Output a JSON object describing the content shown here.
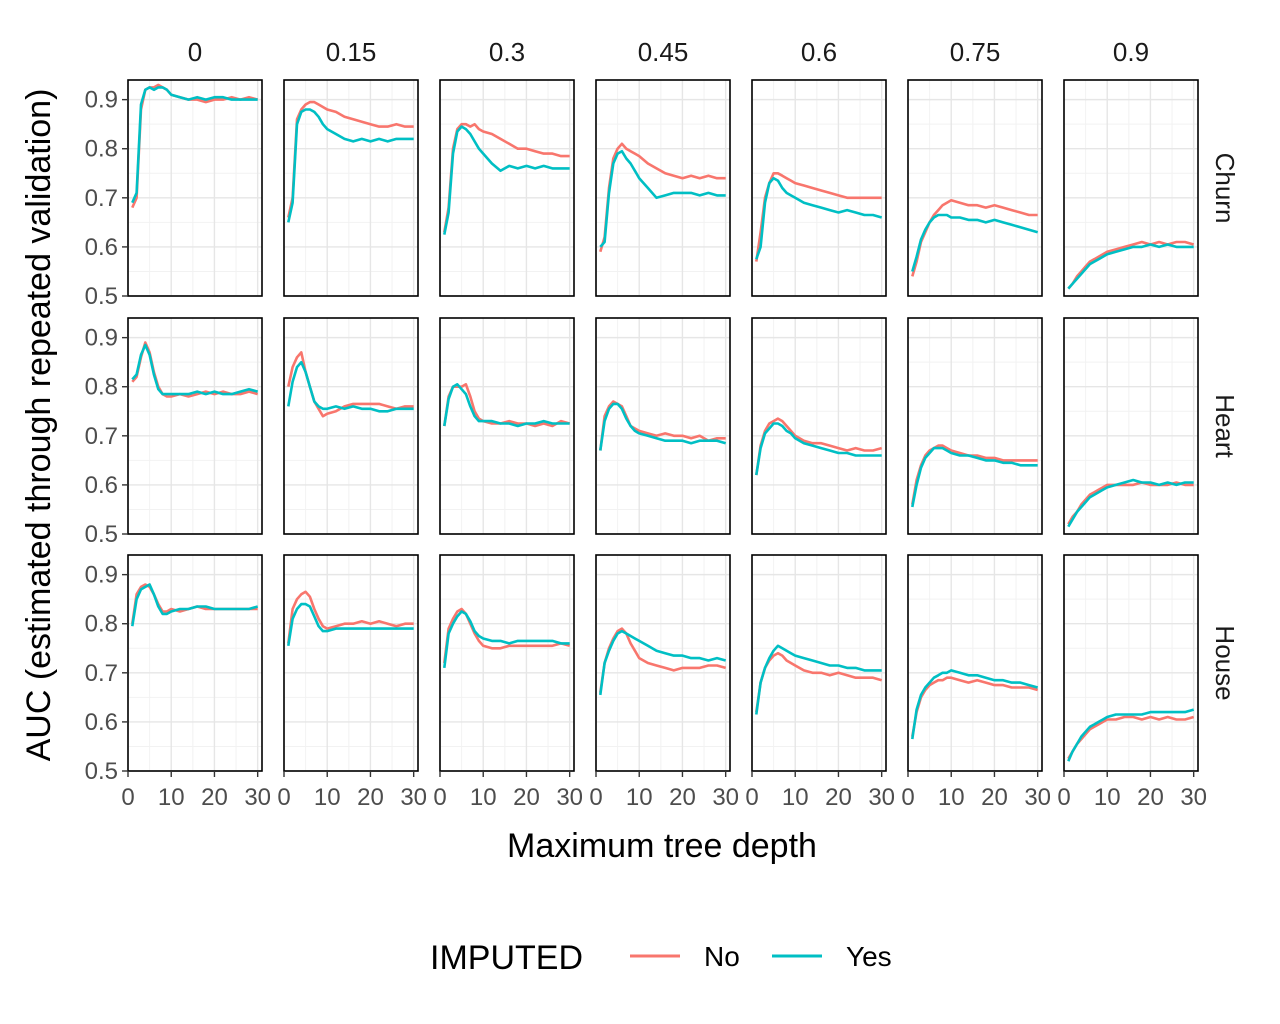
{
  "chart_data": {
    "type": "line",
    "xlabel": "Maximum tree depth",
    "ylabel": "AUC (estimated through repeated validation)",
    "xlim": [
      0,
      31
    ],
    "ylim": [
      0.5,
      0.94
    ],
    "x_ticks": [
      0,
      10,
      20,
      30
    ],
    "x_tick_labels": [
      "0",
      "10",
      "20",
      "30"
    ],
    "y_ticks": [
      0.5,
      0.6,
      0.7,
      0.8,
      0.9
    ],
    "y_tick_labels": [
      "0.5",
      "0.6",
      "0.7",
      "0.8",
      "0.9"
    ],
    "grid": true,
    "legend": {
      "title": "IMPUTED",
      "position": "bottom",
      "entries": [
        {
          "label": "No",
          "color": "#F8766D"
        },
        {
          "label": "Yes",
          "color": "#00BFC4"
        }
      ]
    },
    "columns": [
      "0",
      "0.15",
      "0.3",
      "0.45",
      "0.6",
      "0.75",
      "0.9"
    ],
    "rows": [
      "Churn",
      "Heart",
      "House"
    ],
    "x": [
      1,
      2,
      3,
      4,
      5,
      6,
      7,
      8,
      9,
      10,
      12,
      14,
      16,
      18,
      20,
      22,
      24,
      26,
      28,
      30
    ],
    "panels": [
      [
        {
          "No": [
            0.68,
            0.7,
            0.88,
            0.92,
            0.925,
            0.925,
            0.93,
            0.925,
            0.92,
            0.91,
            0.905,
            0.9,
            0.9,
            0.895,
            0.9,
            0.9,
            0.905,
            0.9,
            0.905,
            0.9
          ],
          "Yes": [
            0.69,
            0.71,
            0.89,
            0.92,
            0.925,
            0.92,
            0.925,
            0.925,
            0.92,
            0.91,
            0.905,
            0.9,
            0.905,
            0.9,
            0.905,
            0.905,
            0.9,
            0.9,
            0.9,
            0.9
          ]
        },
        {
          "No": [
            0.66,
            0.7,
            0.86,
            0.88,
            0.89,
            0.895,
            0.895,
            0.89,
            0.885,
            0.88,
            0.875,
            0.865,
            0.86,
            0.855,
            0.85,
            0.845,
            0.845,
            0.85,
            0.845,
            0.845
          ],
          "Yes": [
            0.65,
            0.69,
            0.85,
            0.875,
            0.88,
            0.88,
            0.875,
            0.865,
            0.85,
            0.84,
            0.83,
            0.82,
            0.815,
            0.82,
            0.815,
            0.82,
            0.815,
            0.82,
            0.82,
            0.82
          ]
        },
        {
          "No": [
            0.63,
            0.68,
            0.8,
            0.84,
            0.85,
            0.85,
            0.845,
            0.85,
            0.84,
            0.835,
            0.83,
            0.82,
            0.81,
            0.8,
            0.8,
            0.795,
            0.79,
            0.79,
            0.785,
            0.785
          ],
          "Yes": [
            0.625,
            0.67,
            0.79,
            0.835,
            0.845,
            0.84,
            0.83,
            0.815,
            0.8,
            0.79,
            0.77,
            0.755,
            0.765,
            0.76,
            0.765,
            0.76,
            0.765,
            0.76,
            0.76,
            0.76
          ]
        },
        {
          "No": [
            0.59,
            0.62,
            0.72,
            0.78,
            0.8,
            0.81,
            0.8,
            0.795,
            0.79,
            0.785,
            0.77,
            0.76,
            0.75,
            0.745,
            0.74,
            0.745,
            0.74,
            0.745,
            0.74,
            0.74
          ],
          "Yes": [
            0.6,
            0.61,
            0.71,
            0.77,
            0.79,
            0.795,
            0.78,
            0.77,
            0.755,
            0.74,
            0.72,
            0.7,
            0.705,
            0.71,
            0.71,
            0.71,
            0.705,
            0.71,
            0.705,
            0.705
          ]
        },
        {
          "No": [
            0.57,
            0.63,
            0.7,
            0.73,
            0.75,
            0.75,
            0.745,
            0.74,
            0.735,
            0.73,
            0.725,
            0.72,
            0.715,
            0.71,
            0.705,
            0.7,
            0.7,
            0.7,
            0.7,
            0.7
          ],
          "Yes": [
            0.575,
            0.6,
            0.69,
            0.73,
            0.74,
            0.735,
            0.72,
            0.71,
            0.705,
            0.7,
            0.69,
            0.685,
            0.68,
            0.675,
            0.67,
            0.675,
            0.67,
            0.665,
            0.665,
            0.66
          ]
        },
        {
          "No": [
            0.54,
            0.57,
            0.61,
            0.63,
            0.65,
            0.665,
            0.675,
            0.685,
            0.69,
            0.695,
            0.69,
            0.685,
            0.685,
            0.68,
            0.685,
            0.68,
            0.675,
            0.67,
            0.665,
            0.665
          ],
          "Yes": [
            0.55,
            0.58,
            0.615,
            0.635,
            0.65,
            0.66,
            0.665,
            0.665,
            0.665,
            0.66,
            0.66,
            0.655,
            0.655,
            0.65,
            0.655,
            0.65,
            0.645,
            0.64,
            0.635,
            0.63
          ]
        },
        {
          "No": [
            0.515,
            0.525,
            0.54,
            0.55,
            0.56,
            0.57,
            0.575,
            0.58,
            0.585,
            0.59,
            0.595,
            0.6,
            0.605,
            0.61,
            0.605,
            0.61,
            0.605,
            0.61,
            0.61,
            0.605
          ],
          "Yes": [
            0.515,
            0.525,
            0.535,
            0.545,
            0.555,
            0.565,
            0.57,
            0.575,
            0.58,
            0.585,
            0.59,
            0.595,
            0.6,
            0.6,
            0.605,
            0.6,
            0.605,
            0.6,
            0.6,
            0.6
          ]
        }
      ],
      [
        {
          "No": [
            0.81,
            0.82,
            0.86,
            0.89,
            0.87,
            0.83,
            0.8,
            0.785,
            0.78,
            0.78,
            0.785,
            0.78,
            0.785,
            0.79,
            0.785,
            0.79,
            0.785,
            0.785,
            0.79,
            0.785
          ],
          "Yes": [
            0.815,
            0.825,
            0.865,
            0.885,
            0.865,
            0.825,
            0.795,
            0.785,
            0.785,
            0.785,
            0.785,
            0.785,
            0.79,
            0.785,
            0.79,
            0.785,
            0.785,
            0.79,
            0.795,
            0.79
          ]
        },
        {
          "No": [
            0.8,
            0.84,
            0.86,
            0.87,
            0.83,
            0.8,
            0.77,
            0.755,
            0.74,
            0.745,
            0.75,
            0.76,
            0.765,
            0.765,
            0.765,
            0.765,
            0.76,
            0.755,
            0.76,
            0.76
          ],
          "Yes": [
            0.76,
            0.81,
            0.84,
            0.85,
            0.83,
            0.8,
            0.77,
            0.76,
            0.755,
            0.755,
            0.76,
            0.755,
            0.76,
            0.755,
            0.755,
            0.75,
            0.75,
            0.755,
            0.755,
            0.755
          ]
        },
        {
          "No": [
            0.72,
            0.78,
            0.8,
            0.8,
            0.8,
            0.805,
            0.78,
            0.75,
            0.735,
            0.73,
            0.725,
            0.725,
            0.73,
            0.725,
            0.725,
            0.72,
            0.725,
            0.72,
            0.73,
            0.725
          ],
          "Yes": [
            0.72,
            0.775,
            0.8,
            0.805,
            0.795,
            0.785,
            0.76,
            0.74,
            0.73,
            0.73,
            0.73,
            0.725,
            0.725,
            0.72,
            0.725,
            0.725,
            0.73,
            0.725,
            0.725,
            0.725
          ]
        },
        {
          "No": [
            0.67,
            0.74,
            0.76,
            0.77,
            0.765,
            0.76,
            0.74,
            0.72,
            0.715,
            0.71,
            0.705,
            0.7,
            0.705,
            0.7,
            0.7,
            0.695,
            0.7,
            0.69,
            0.695,
            0.695
          ],
          "Yes": [
            0.67,
            0.73,
            0.755,
            0.765,
            0.765,
            0.755,
            0.735,
            0.72,
            0.71,
            0.705,
            0.7,
            0.695,
            0.69,
            0.69,
            0.69,
            0.685,
            0.69,
            0.69,
            0.69,
            0.685
          ]
        },
        {
          "No": [
            0.62,
            0.68,
            0.71,
            0.725,
            0.73,
            0.735,
            0.73,
            0.72,
            0.71,
            0.7,
            0.69,
            0.685,
            0.685,
            0.68,
            0.675,
            0.67,
            0.675,
            0.67,
            0.67,
            0.675
          ],
          "Yes": [
            0.62,
            0.675,
            0.705,
            0.715,
            0.725,
            0.725,
            0.72,
            0.71,
            0.705,
            0.695,
            0.685,
            0.68,
            0.675,
            0.67,
            0.665,
            0.665,
            0.66,
            0.66,
            0.66,
            0.66
          ]
        },
        {
          "No": [
            0.56,
            0.61,
            0.64,
            0.66,
            0.67,
            0.675,
            0.68,
            0.68,
            0.675,
            0.67,
            0.665,
            0.66,
            0.66,
            0.655,
            0.655,
            0.65,
            0.65,
            0.65,
            0.65,
            0.65
          ],
          "Yes": [
            0.555,
            0.6,
            0.635,
            0.655,
            0.665,
            0.675,
            0.675,
            0.675,
            0.67,
            0.665,
            0.66,
            0.66,
            0.655,
            0.65,
            0.65,
            0.645,
            0.645,
            0.64,
            0.64,
            0.64
          ]
        },
        {
          "No": [
            0.52,
            0.535,
            0.545,
            0.56,
            0.57,
            0.58,
            0.585,
            0.59,
            0.595,
            0.6,
            0.6,
            0.6,
            0.6,
            0.605,
            0.6,
            0.6,
            0.6,
            0.605,
            0.6,
            0.6
          ],
          "Yes": [
            0.515,
            0.53,
            0.545,
            0.555,
            0.565,
            0.575,
            0.58,
            0.585,
            0.59,
            0.595,
            0.6,
            0.605,
            0.61,
            0.605,
            0.605,
            0.6,
            0.605,
            0.6,
            0.605,
            0.605
          ]
        }
      ],
      [
        {
          "No": [
            0.8,
            0.86,
            0.875,
            0.88,
            0.875,
            0.86,
            0.84,
            0.825,
            0.825,
            0.83,
            0.825,
            0.83,
            0.835,
            0.83,
            0.83,
            0.83,
            0.83,
            0.83,
            0.83,
            0.83
          ],
          "Yes": [
            0.795,
            0.85,
            0.87,
            0.875,
            0.88,
            0.86,
            0.835,
            0.82,
            0.82,
            0.825,
            0.83,
            0.83,
            0.835,
            0.835,
            0.83,
            0.83,
            0.83,
            0.83,
            0.83,
            0.835
          ]
        },
        {
          "No": [
            0.76,
            0.83,
            0.85,
            0.86,
            0.865,
            0.855,
            0.83,
            0.81,
            0.795,
            0.79,
            0.795,
            0.8,
            0.8,
            0.805,
            0.8,
            0.805,
            0.8,
            0.795,
            0.8,
            0.8
          ],
          "Yes": [
            0.755,
            0.81,
            0.83,
            0.84,
            0.84,
            0.835,
            0.815,
            0.795,
            0.785,
            0.785,
            0.79,
            0.79,
            0.79,
            0.79,
            0.79,
            0.79,
            0.79,
            0.79,
            0.79,
            0.79
          ]
        },
        {
          "No": [
            0.72,
            0.79,
            0.81,
            0.825,
            0.83,
            0.82,
            0.8,
            0.78,
            0.765,
            0.755,
            0.75,
            0.75,
            0.755,
            0.755,
            0.755,
            0.755,
            0.755,
            0.755,
            0.76,
            0.755
          ],
          "Yes": [
            0.71,
            0.78,
            0.8,
            0.815,
            0.825,
            0.82,
            0.805,
            0.785,
            0.775,
            0.77,
            0.765,
            0.765,
            0.76,
            0.765,
            0.765,
            0.765,
            0.765,
            0.765,
            0.76,
            0.76
          ]
        },
        {
          "No": [
            0.66,
            0.72,
            0.75,
            0.77,
            0.785,
            0.79,
            0.78,
            0.76,
            0.745,
            0.73,
            0.72,
            0.715,
            0.71,
            0.705,
            0.71,
            0.71,
            0.71,
            0.715,
            0.715,
            0.71
          ],
          "Yes": [
            0.655,
            0.72,
            0.745,
            0.765,
            0.78,
            0.785,
            0.78,
            0.775,
            0.77,
            0.765,
            0.755,
            0.745,
            0.74,
            0.735,
            0.735,
            0.73,
            0.73,
            0.725,
            0.73,
            0.725
          ]
        },
        {
          "No": [
            0.62,
            0.68,
            0.71,
            0.725,
            0.735,
            0.74,
            0.735,
            0.725,
            0.72,
            0.715,
            0.705,
            0.7,
            0.7,
            0.695,
            0.7,
            0.695,
            0.69,
            0.69,
            0.69,
            0.685
          ],
          "Yes": [
            0.615,
            0.68,
            0.71,
            0.73,
            0.745,
            0.755,
            0.75,
            0.745,
            0.74,
            0.735,
            0.73,
            0.725,
            0.72,
            0.715,
            0.715,
            0.71,
            0.71,
            0.705,
            0.705,
            0.705
          ]
        },
        {
          "No": [
            0.57,
            0.62,
            0.65,
            0.665,
            0.675,
            0.68,
            0.685,
            0.685,
            0.69,
            0.69,
            0.685,
            0.68,
            0.685,
            0.68,
            0.675,
            0.675,
            0.67,
            0.67,
            0.67,
            0.665
          ],
          "Yes": [
            0.565,
            0.625,
            0.655,
            0.67,
            0.68,
            0.69,
            0.695,
            0.7,
            0.7,
            0.705,
            0.7,
            0.695,
            0.695,
            0.69,
            0.685,
            0.685,
            0.68,
            0.68,
            0.675,
            0.67
          ]
        },
        {
          "No": [
            0.525,
            0.54,
            0.555,
            0.565,
            0.575,
            0.585,
            0.59,
            0.595,
            0.6,
            0.605,
            0.605,
            0.61,
            0.61,
            0.605,
            0.61,
            0.605,
            0.61,
            0.605,
            0.605,
            0.61
          ],
          "Yes": [
            0.52,
            0.54,
            0.555,
            0.57,
            0.58,
            0.59,
            0.595,
            0.6,
            0.605,
            0.61,
            0.615,
            0.615,
            0.615,
            0.615,
            0.62,
            0.62,
            0.62,
            0.62,
            0.62,
            0.625
          ]
        }
      ]
    ]
  }
}
